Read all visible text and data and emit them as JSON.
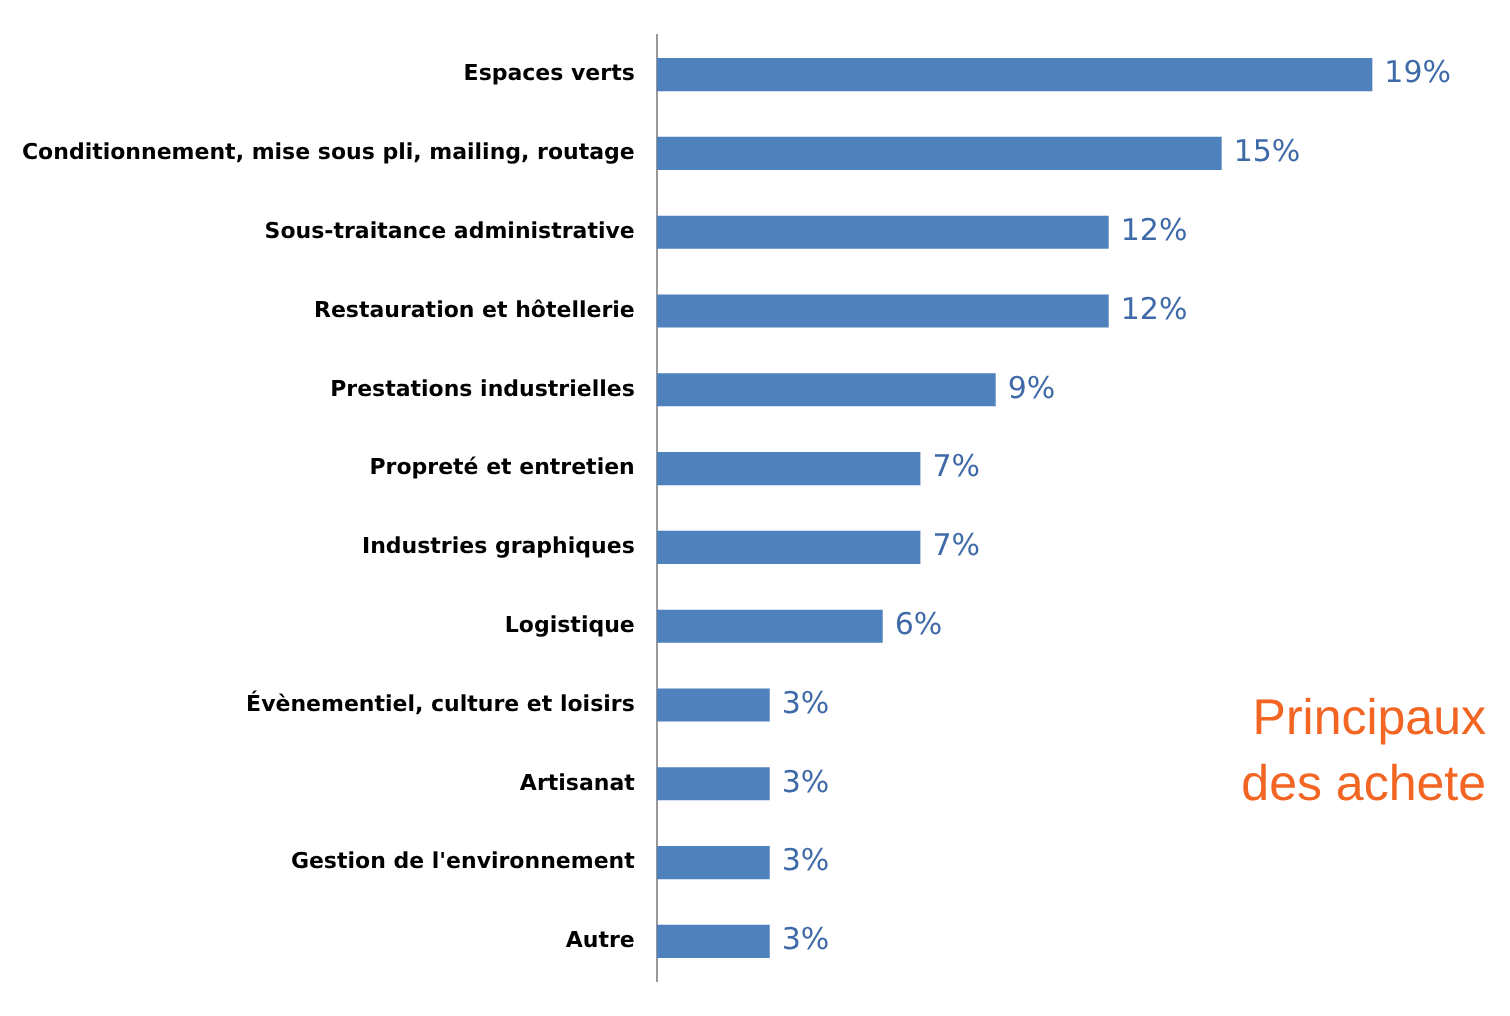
{
  "chart_data": {
    "type": "bar",
    "orientation": "horizontal",
    "categories": [
      "Espaces verts",
      "Conditionnement, mise sous pli, mailing, routage",
      "Sous-traitance administrative",
      "Restauration et hôtellerie",
      "Prestations industrielles",
      "Propreté et entretien",
      "Industries graphiques",
      "Logistique",
      "Évènementiel, culture et loisirs",
      "Artisanat",
      "Gestion de l'environnement",
      "Autre"
    ],
    "values": [
      19,
      15,
      12,
      12,
      9,
      7,
      7,
      6,
      3,
      3,
      3,
      3
    ],
    "value_labels": [
      "19%",
      "15%",
      "12%",
      "12%",
      "9%",
      "7%",
      "7%",
      "6%",
      "3%",
      "3%",
      "3%",
      "3%"
    ],
    "color": "#4f81bd",
    "annotations": [
      "Principaux",
      "des achete"
    ]
  }
}
